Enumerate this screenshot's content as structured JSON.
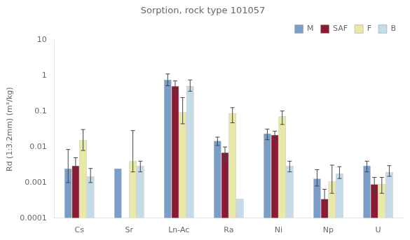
{
  "chart_data": {
    "type": "bar",
    "title": "Sorption, rock type 101057",
    "y_label": "Rd (1:3.2mm) (m³/kg)",
    "categories": [
      "Cs",
      "Sr",
      "Ln-Ac",
      "Ra",
      "Ni",
      "Np",
      "U"
    ],
    "series": [
      {
        "name": "M",
        "color": "#7b9ec8",
        "values": [
          0.0025,
          0.0025,
          0.78,
          0.015,
          0.024,
          0.0013,
          0.003
        ],
        "errors": [
          [
            0.0015,
            0.006
          ],
          [
            null,
            null
          ],
          [
            0.25,
            0.35
          ],
          [
            0.004,
            0.004
          ],
          [
            0.008,
            0.008
          ],
          [
            0.0005,
            0.001
          ],
          [
            0.001,
            0.001
          ]
        ]
      },
      {
        "name": "SAF",
        "color": "#8b1a35",
        "values": [
          0.003,
          null,
          0.52,
          0.007,
          0.022,
          0.00035,
          0.0009
        ],
        "errors": [
          [
            0.001,
            0.002
          ],
          [
            null,
            null
          ],
          [
            0.15,
            0.2
          ],
          [
            0.003,
            0.003
          ],
          [
            0.006,
            0.006
          ],
          [
            0.0001,
            0.0003
          ],
          [
            0.0003,
            0.0005
          ]
        ]
      },
      {
        "name": "F",
        "color": "#e8e8a8",
        "values": [
          0.016,
          0.004,
          0.095,
          0.088,
          0.073,
          0.0011,
          0.0009
        ],
        "errors": [
          [
            0.008,
            0.015
          ],
          [
            0.002,
            0.025
          ],
          [
            0.05,
            0.15
          ],
          [
            0.04,
            0.04
          ],
          [
            0.03,
            0.03
          ],
          [
            0.0006,
            0.002
          ],
          [
            0.0004,
            0.0005
          ]
        ]
      },
      {
        "name": "B",
        "color": "#c5dce8",
        "values": [
          0.0015,
          0.003,
          0.52,
          0.00035,
          0.003,
          0.0018,
          0.002
        ],
        "errors": [
          [
            0.0005,
            0.001
          ],
          [
            0.001,
            0.001
          ],
          [
            0.15,
            0.25
          ],
          [
            null,
            null
          ],
          [
            0.001,
            0.001
          ],
          [
            0.0005,
            0.001
          ],
          [
            0.0005,
            0.001
          ]
        ]
      }
    ],
    "log": "y",
    "ylim": [
      0.0001,
      10
    ],
    "yticks": [
      0.0001,
      0.001,
      0.01,
      0.1,
      1,
      10
    ],
    "grid": false,
    "legend": "upper right"
  }
}
